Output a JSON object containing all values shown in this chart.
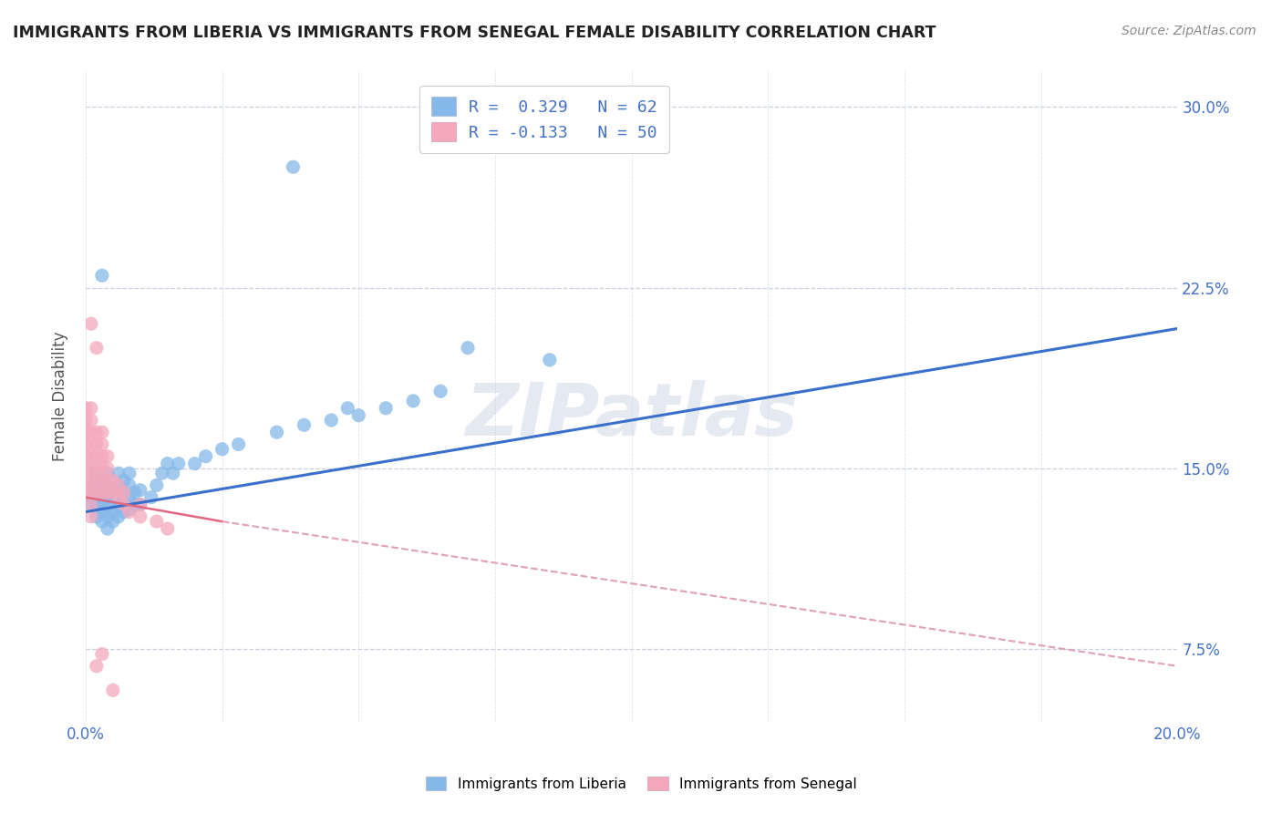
{
  "title": "IMMIGRANTS FROM LIBERIA VS IMMIGRANTS FROM SENEGAL FEMALE DISABILITY CORRELATION CHART",
  "source_text": "Source: ZipAtlas.com",
  "ylabel": "Female Disability",
  "xlim": [
    0.0,
    0.2
  ],
  "ylim": [
    0.045,
    0.315
  ],
  "yticks": [
    0.075,
    0.15,
    0.225,
    0.3
  ],
  "ytick_labels": [
    "7.5%",
    "15.0%",
    "22.5%",
    "30.0%"
  ],
  "xticks": [
    0.0,
    0.025,
    0.05,
    0.075,
    0.1,
    0.125,
    0.15,
    0.175,
    0.2
  ],
  "xtick_labels": [
    "0.0%",
    "",
    "",
    "",
    "",
    "",
    "",
    "",
    "20.0%"
  ],
  "legend1_label": "R =  0.329   N = 62",
  "legend2_label": "R = -0.133   N = 50",
  "watermark": "ZIPatlas",
  "scatter_liberia": [
    [
      0.001,
      0.135
    ],
    [
      0.001,
      0.138
    ],
    [
      0.001,
      0.142
    ],
    [
      0.002,
      0.13
    ],
    [
      0.002,
      0.135
    ],
    [
      0.002,
      0.14
    ],
    [
      0.002,
      0.144
    ],
    [
      0.002,
      0.148
    ],
    [
      0.003,
      0.128
    ],
    [
      0.003,
      0.132
    ],
    [
      0.003,
      0.136
    ],
    [
      0.003,
      0.14
    ],
    [
      0.003,
      0.144
    ],
    [
      0.004,
      0.125
    ],
    [
      0.004,
      0.13
    ],
    [
      0.004,
      0.134
    ],
    [
      0.004,
      0.138
    ],
    [
      0.004,
      0.143
    ],
    [
      0.004,
      0.148
    ],
    [
      0.005,
      0.128
    ],
    [
      0.005,
      0.132
    ],
    [
      0.005,
      0.137
    ],
    [
      0.005,
      0.142
    ],
    [
      0.006,
      0.13
    ],
    [
      0.006,
      0.134
    ],
    [
      0.006,
      0.138
    ],
    [
      0.006,
      0.143
    ],
    [
      0.006,
      0.148
    ],
    [
      0.007,
      0.132
    ],
    [
      0.007,
      0.136
    ],
    [
      0.007,
      0.14
    ],
    [
      0.007,
      0.145
    ],
    [
      0.008,
      0.133
    ],
    [
      0.008,
      0.138
    ],
    [
      0.008,
      0.143
    ],
    [
      0.008,
      0.148
    ],
    [
      0.009,
      0.135
    ],
    [
      0.009,
      0.14
    ],
    [
      0.01,
      0.135
    ],
    [
      0.01,
      0.141
    ],
    [
      0.012,
      0.138
    ],
    [
      0.013,
      0.143
    ],
    [
      0.014,
      0.148
    ],
    [
      0.015,
      0.152
    ],
    [
      0.016,
      0.148
    ],
    [
      0.017,
      0.152
    ],
    [
      0.02,
      0.152
    ],
    [
      0.022,
      0.155
    ],
    [
      0.025,
      0.158
    ],
    [
      0.028,
      0.16
    ],
    [
      0.035,
      0.165
    ],
    [
      0.04,
      0.168
    ],
    [
      0.045,
      0.17
    ],
    [
      0.048,
      0.175
    ],
    [
      0.05,
      0.172
    ],
    [
      0.055,
      0.175
    ],
    [
      0.06,
      0.178
    ],
    [
      0.065,
      0.182
    ],
    [
      0.038,
      0.275
    ],
    [
      0.07,
      0.2
    ],
    [
      0.085,
      0.195
    ],
    [
      0.003,
      0.23
    ]
  ],
  "scatter_senegal": [
    [
      0.0,
      0.155
    ],
    [
      0.0,
      0.16
    ],
    [
      0.0,
      0.165
    ],
    [
      0.0,
      0.17
    ],
    [
      0.0,
      0.175
    ],
    [
      0.0,
      0.14
    ],
    [
      0.0,
      0.145
    ],
    [
      0.0,
      0.15
    ],
    [
      0.001,
      0.145
    ],
    [
      0.001,
      0.15
    ],
    [
      0.001,
      0.155
    ],
    [
      0.001,
      0.16
    ],
    [
      0.001,
      0.165
    ],
    [
      0.001,
      0.17
    ],
    [
      0.001,
      0.175
    ],
    [
      0.001,
      0.13
    ],
    [
      0.001,
      0.135
    ],
    [
      0.001,
      0.14
    ],
    [
      0.002,
      0.14
    ],
    [
      0.002,
      0.145
    ],
    [
      0.002,
      0.15
    ],
    [
      0.002,
      0.155
    ],
    [
      0.002,
      0.16
    ],
    [
      0.002,
      0.165
    ],
    [
      0.003,
      0.14
    ],
    [
      0.003,
      0.145
    ],
    [
      0.003,
      0.15
    ],
    [
      0.003,
      0.155
    ],
    [
      0.003,
      0.16
    ],
    [
      0.003,
      0.165
    ],
    [
      0.004,
      0.14
    ],
    [
      0.004,
      0.145
    ],
    [
      0.004,
      0.15
    ],
    [
      0.004,
      0.155
    ],
    [
      0.005,
      0.14
    ],
    [
      0.005,
      0.145
    ],
    [
      0.006,
      0.138
    ],
    [
      0.006,
      0.143
    ],
    [
      0.007,
      0.135
    ],
    [
      0.007,
      0.14
    ],
    [
      0.008,
      0.132
    ],
    [
      0.01,
      0.13
    ],
    [
      0.01,
      0.135
    ],
    [
      0.013,
      0.128
    ],
    [
      0.015,
      0.125
    ],
    [
      0.002,
      0.2
    ],
    [
      0.001,
      0.21
    ],
    [
      0.003,
      0.073
    ],
    [
      0.005,
      0.058
    ],
    [
      0.002,
      0.068
    ]
  ],
  "blue_color": "#85b8e8",
  "pink_color": "#f4a8bc",
  "blue_line_color": "#3a6fcc",
  "pink_line_color": "#e06880",
  "pink_dash_color": "#e0a0b8",
  "liberia_trend": [
    0.0,
    0.2,
    0.132,
    0.208
  ],
  "senegal_trend_solid": [
    0.0,
    0.025,
    0.138,
    0.128
  ],
  "senegal_trend_dashed": [
    0.025,
    0.2,
    0.128,
    0.068
  ],
  "grid_color": "#c8d0e0",
  "background_color": "#ffffff",
  "axis_label_color": "#4472c4",
  "tick_color": "#4472c4"
}
